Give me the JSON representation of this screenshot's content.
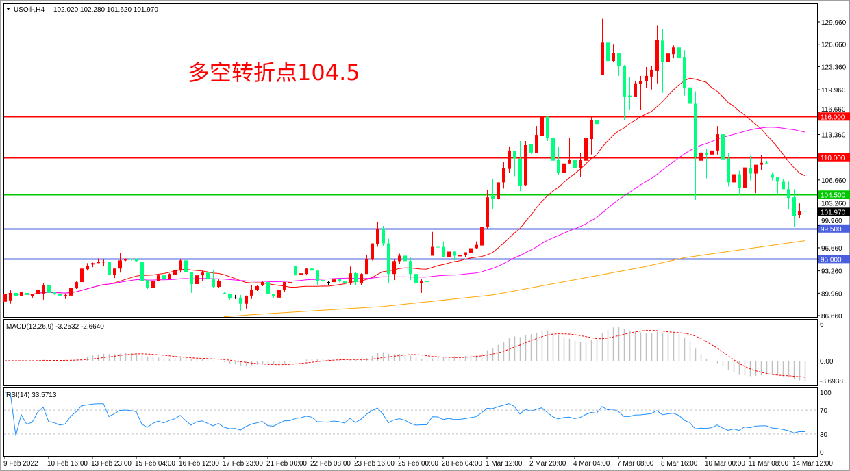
{
  "header": {
    "symbol_timeframe": "USOil-,H4",
    "ohlc_readout": "102.020 102.280 101.620 101.970",
    "menu_icon": "triangle-down-icon"
  },
  "annotation": "多空转折点104.5",
  "macd": {
    "label": "MACD(12,26,9) -3.2532 -2.6640",
    "axis_labels": [
      {
        "value": 6,
        "text": "6"
      },
      {
        "value": 0,
        "text": "0.00"
      },
      {
        "value": -3.6938,
        "text": "-3.6938"
      }
    ],
    "histogram_color": "#c0c0c0",
    "signal_color": "#ff0000"
  },
  "rsi": {
    "label": "RSI(14) 33.5713",
    "axis_labels": [
      {
        "value": 100,
        "text": "100"
      },
      {
        "value": 70,
        "text": "70"
      },
      {
        "value": 30,
        "text": "30"
      },
      {
        "value": 0,
        "text": "0"
      }
    ],
    "levels": [
      70,
      30
    ],
    "line_color": "#1e90ff"
  },
  "chart_data": {
    "type": "candlestick",
    "symbol": "USOil-",
    "timeframe": "H4",
    "bull_color": "#ff0000",
    "bear_color": "#00ff7f",
    "ylim": [
      86.66,
      129.96
    ],
    "grid": false,
    "price_ticks": [
      "129.960",
      "126.660",
      "123.360",
      "119.960",
      "116.660",
      "113.360",
      "106.660",
      "103.260",
      "99.960",
      "96.660",
      "93.260",
      "89.960",
      "86.660"
    ],
    "time_labels": [
      "9 Feb 2022",
      "10 Feb 16:00",
      "13 Feb 23:00",
      "15 Feb 04:00",
      "16 Feb 12:00",
      "17 Feb 23:00",
      "21 Feb 00:00",
      "22 Feb 08:00",
      "23 Feb 16:00",
      "25 Feb 00:00",
      "28 Feb 04:00",
      "1 Mar 12:00",
      "2 Mar 20:00",
      "4 Mar 04:00",
      "7 Mar 08:00",
      "8 Mar 16:00",
      "10 Mar 00:00",
      "11 Mar 08:00",
      "14 Mar 12:00"
    ],
    "horizontal_levels": [
      {
        "value": 116.0,
        "label": "116.000",
        "color": "#ff0000"
      },
      {
        "value": 110.0,
        "label": "110.000",
        "color": "#ff0000"
      },
      {
        "value": 104.5,
        "label": "104.500",
        "color": "#00c800"
      },
      {
        "value": 99.5,
        "label": "99.500",
        "color": "#4a5fe0"
      },
      {
        "value": 95.0,
        "label": "95.000",
        "color": "#4a5fe0"
      }
    ],
    "current_price": {
      "value": 101.97,
      "label": "101.970",
      "color": "#c0c0c0"
    },
    "ma_colors": {
      "short": "#ff0000",
      "medium": "#ff00ff",
      "long": "#ffa500"
    },
    "ma_long_points": [
      [
        40,
        86.5
      ],
      [
        49,
        87.0
      ],
      [
        69,
        88.0
      ],
      [
        89,
        89.7
      ],
      [
        117,
        93.9
      ],
      [
        124,
        95.2
      ],
      [
        146,
        97.7
      ]
    ],
    "ohlc": [
      [
        88.7,
        89.9,
        88.6,
        89.8
      ],
      [
        88.9,
        90.5,
        88.4,
        90.0
      ],
      [
        90.0,
        90.3,
        88.9,
        89.5
      ],
      [
        89.5,
        90.1,
        89.5,
        90.1
      ],
      [
        90.0,
        90.2,
        89.4,
        89.7
      ],
      [
        89.5,
        89.8,
        89.3,
        89.8
      ],
      [
        89.8,
        90.9,
        89.7,
        90.5
      ],
      [
        89.8,
        91.5,
        89.0,
        91.2
      ],
      [
        91.2,
        91.7,
        89.5,
        90.0
      ],
      [
        90.1,
        90.2,
        89.7,
        89.9
      ],
      [
        89.8,
        90.0,
        89.4,
        89.6
      ],
      [
        89.6,
        89.9,
        89.1,
        89.7
      ],
      [
        89.6,
        91.0,
        89.4,
        90.7
      ],
      [
        90.7,
        91.7,
        90.6,
        91.6
      ],
      [
        91.6,
        94.7,
        91.3,
        93.6
      ],
      [
        93.5,
        94.4,
        93.3,
        94.0
      ],
      [
        94.2,
        94.5,
        93.8,
        94.4
      ],
      [
        94.4,
        95.1,
        94.4,
        94.6
      ],
      [
        94.5,
        94.9,
        94.0,
        94.6
      ],
      [
        94.6,
        94.6,
        92.6,
        92.7
      ],
      [
        92.7,
        93.6,
        92.2,
        93.6
      ],
      [
        93.6,
        95.9,
        93.0,
        94.8
      ],
      [
        94.8,
        95.1,
        94.7,
        95.0
      ],
      [
        95.0,
        95.1,
        94.8,
        94.9
      ],
      [
        95.0,
        95.1,
        94.6,
        94.7
      ],
      [
        94.6,
        94.7,
        91.7,
        91.8
      ],
      [
        91.9,
        91.9,
        90.6,
        90.7
      ],
      [
        90.7,
        91.8,
        90.7,
        91.8
      ],
      [
        91.8,
        92.7,
        91.7,
        92.6
      ],
      [
        92.6,
        92.6,
        91.6,
        92.0
      ],
      [
        92.0,
        92.9,
        92.0,
        92.8
      ],
      [
        92.7,
        93.6,
        92.6,
        93.4
      ],
      [
        93.3,
        95.0,
        93.0,
        94.8
      ],
      [
        94.8,
        95.2,
        93.1,
        93.1
      ],
      [
        93.1,
        93.1,
        90.0,
        91.3
      ],
      [
        91.3,
        92.6,
        90.9,
        92.6
      ],
      [
        92.6,
        93.3,
        91.8,
        93.0
      ],
      [
        93.0,
        93.2,
        91.3,
        92.0
      ],
      [
        92.0,
        93.4,
        90.8,
        90.9
      ],
      [
        90.9,
        92.0,
        90.8,
        91.8
      ],
      [
        90.0,
        90.1,
        89.9,
        89.98
      ],
      [
        89.9,
        89.9,
        89.0,
        89.2
      ],
      [
        89.3,
        89.7,
        89.1,
        89.3
      ],
      [
        89.3,
        89.7,
        87.4,
        88.4
      ],
      [
        88.4,
        89.6,
        87.7,
        89.6
      ],
      [
        89.6,
        91.2,
        89.1,
        90.5
      ],
      [
        90.4,
        91.1,
        90.3,
        91.0
      ],
      [
        91.1,
        91.7,
        91.0,
        91.6
      ],
      [
        91.6,
        91.6,
        89.1,
        89.8
      ],
      [
        89.8,
        89.9,
        89.3,
        89.5
      ],
      [
        89.3,
        90.5,
        89.3,
        90.5
      ],
      [
        90.5,
        91.6,
        90.2,
        91.6
      ],
      [
        91.5,
        91.9,
        91.2,
        91.6
      ],
      [
        94.0,
        94.0,
        92.6,
        92.6
      ],
      [
        92.7,
        93.5,
        92.1,
        92.9
      ],
      [
        92.8,
        93.7,
        92.6,
        93.6
      ],
      [
        93.6,
        95.0,
        93.1,
        93.3
      ],
      [
        93.3,
        93.3,
        91.1,
        91.8
      ],
      [
        91.9,
        92.7,
        91.1,
        91.7
      ],
      [
        91.6,
        91.8,
        91.1,
        91.6
      ],
      [
        91.6,
        92.2,
        91.4,
        92.0
      ],
      [
        92.0,
        92.1,
        91.6,
        91.8
      ],
      [
        91.8,
        92.0,
        90.5,
        91.4
      ],
      [
        91.4,
        93.9,
        91.2,
        92.9
      ],
      [
        92.9,
        93.1,
        91.2,
        91.6
      ],
      [
        91.5,
        92.9,
        91.2,
        92.8
      ],
      [
        92.8,
        95.6,
        92.8,
        95.0
      ],
      [
        94.9,
        97.3,
        94.8,
        97.3
      ],
      [
        97.2,
        100.5,
        96.8,
        99.5
      ],
      [
        99.5,
        99.9,
        96.9,
        97.3
      ],
      [
        97.3,
        98.0,
        91.5,
        92.8
      ],
      [
        92.8,
        95.0,
        91.9,
        94.7
      ],
      [
        94.7,
        95.8,
        94.3,
        95.5
      ],
      [
        95.5,
        95.5,
        94.0,
        94.7
      ],
      [
        94.7,
        95.2,
        91.9,
        92.8
      ],
      [
        92.8,
        93.7,
        91.2,
        91.5
      ],
      [
        91.4,
        92.1,
        90.0,
        91.7
      ],
      [
        91.7,
        92.2,
        91.5,
        91.68
      ],
      [
        95.5,
        99.0,
        95.5,
        96.8
      ],
      [
        96.8,
        96.9,
        95.5,
        96.78
      ],
      [
        96.8,
        97.6,
        95.3,
        95.3
      ],
      [
        95.3,
        96.8,
        95.1,
        96.1
      ],
      [
        96.1,
        96.2,
        94.8,
        95.5
      ],
      [
        95.4,
        96.8,
        94.6,
        95.6
      ],
      [
        95.6,
        96.0,
        95.3,
        96.0
      ],
      [
        95.9,
        96.8,
        95.9,
        96.6
      ],
      [
        96.6,
        97.6,
        96.5,
        97.1
      ],
      [
        97.0,
        99.9,
        96.9,
        99.7
      ],
      [
        99.7,
        105.2,
        99.5,
        104.1
      ],
      [
        104.3,
        106.8,
        102.4,
        103.9
      ],
      [
        103.9,
        106.3,
        103.8,
        106.3
      ],
      [
        106.3,
        109.3,
        105.4,
        108.4
      ],
      [
        108.3,
        111.6,
        107.7,
        111.0
      ],
      [
        110.9,
        111.0,
        107.2,
        109.8
      ],
      [
        109.8,
        112.4,
        105.0,
        105.8
      ],
      [
        105.9,
        112.4,
        105.8,
        111.8
      ],
      [
        111.9,
        111.9,
        110.5,
        110.7
      ],
      [
        110.6,
        114.6,
        110.6,
        113.3
      ],
      [
        113.2,
        116.4,
        113.1,
        116.0
      ],
      [
        116.0,
        116.0,
        112.4,
        112.8
      ],
      [
        112.9,
        114.9,
        106.4,
        109.5
      ],
      [
        109.6,
        111.6,
        107.4,
        107.7
      ],
      [
        107.7,
        109.3,
        107.6,
        109.1
      ],
      [
        109.1,
        112.8,
        109.0,
        109.6
      ],
      [
        109.6,
        110.3,
        108.0,
        108.4
      ],
      [
        108.4,
        110.6,
        107.1,
        109.6
      ],
      [
        109.5,
        113.8,
        109.4,
        112.8
      ],
      [
        112.7,
        116.0,
        110.4,
        115.5
      ],
      [
        115.5,
        115.8,
        114.5,
        114.9
      ],
      [
        122.1,
        130.4,
        122.1,
        126.9
      ],
      [
        126.9,
        126.9,
        122.0,
        124.2
      ],
      [
        124.2,
        126.6,
        124.0,
        125.4
      ],
      [
        125.4,
        125.4,
        122.0,
        123.4
      ],
      [
        123.5,
        123.6,
        115.5,
        118.9
      ],
      [
        119.1,
        121.8,
        117.0,
        118.9
      ],
      [
        118.9,
        121.2,
        118.9,
        120.9
      ],
      [
        120.8,
        122.0,
        117.0,
        121.2
      ],
      [
        121.2,
        123.3,
        120.2,
        122.0
      ],
      [
        121.9,
        123.4,
        120.0,
        122.9
      ],
      [
        122.8,
        129.4,
        120.9,
        127.3
      ],
      [
        127.2,
        128.9,
        119.5,
        124.0
      ],
      [
        124.1,
        125.7,
        122.6,
        125.3
      ],
      [
        125.2,
        126.5,
        124.6,
        126.2
      ],
      [
        126.2,
        126.6,
        124.5,
        124.6
      ],
      [
        124.8,
        125.8,
        119.1,
        120.2
      ],
      [
        120.3,
        121.3,
        115.4,
        117.9
      ],
      [
        117.9,
        119.7,
        103.7,
        110.0
      ],
      [
        109.5,
        111.5,
        108.6,
        110.7
      ],
      [
        110.7,
        111.2,
        106.9,
        110.4
      ],
      [
        110.4,
        112.4,
        108.3,
        111.0
      ],
      [
        111.0,
        114.6,
        110.4,
        113.4
      ],
      [
        113.4,
        114.8,
        107.0,
        109.7
      ],
      [
        109.8,
        110.6,
        105.7,
        106.3
      ],
      [
        106.3,
        107.5,
        105.5,
        107.5
      ],
      [
        107.5,
        108.0,
        104.4,
        105.5
      ],
      [
        105.5,
        108.6,
        105.4,
        108.5
      ],
      [
        108.4,
        110.2,
        106.6,
        107.6
      ],
      [
        107.6,
        108.9,
        104.7,
        108.9
      ],
      [
        108.9,
        110.3,
        108.1,
        109.2
      ],
      [
        109.2,
        109.5,
        109.0,
        109.18
      ],
      [
        107.5,
        107.8,
        106.6,
        107.0
      ],
      [
        107.1,
        107.1,
        104.5,
        106.4
      ],
      [
        106.4,
        106.8,
        105.3,
        105.3
      ],
      [
        105.3,
        106.4,
        102.4,
        104.0
      ],
      [
        104.1,
        105.3,
        99.7,
        101.3
      ],
      [
        101.5,
        103.2,
        101.0,
        102.1
      ],
      [
        102.02,
        102.28,
        101.62,
        101.97
      ]
    ]
  }
}
